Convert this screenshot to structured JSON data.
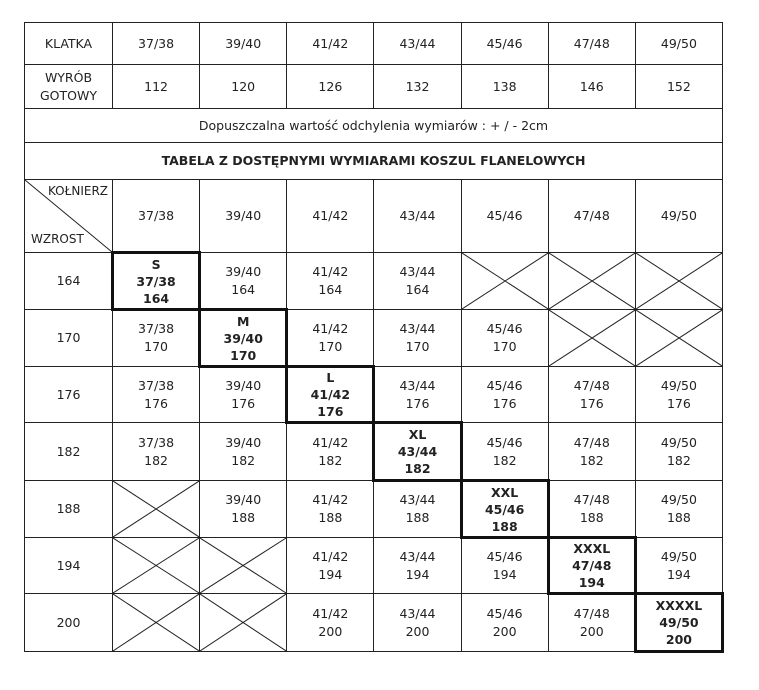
{
  "top_rows": {
    "klatka_label": "KLATKA",
    "klatka_values": [
      "37/38",
      "39/40",
      "41/42",
      "43/44",
      "45/46",
      "47/48",
      "49/50"
    ],
    "wyrob_label_1": "WYRÓB",
    "wyrob_label_2": "GOTOWY",
    "wyrob_values": [
      "112",
      "120",
      "126",
      "132",
      "138",
      "146",
      "152"
    ],
    "tolerance_note": "Dopuszczalna wartość odchylenia wymiarów : + / - 2cm",
    "table_title": "TABELA Z DOSTĘPNYMI WYMIARAMI KOSZUL FLANELOWYCH"
  },
  "size_table": {
    "corner_top": "KOŁNIERZ",
    "corner_bottom": "WZROST",
    "collars": [
      "37/38",
      "39/40",
      "41/42",
      "43/44",
      "45/46",
      "47/48",
      "49/50"
    ],
    "rows": [
      {
        "height": "164",
        "cells": [
          {
            "size": "S",
            "collar": "37/38",
            "height": "164"
          },
          {
            "collar": "39/40",
            "height": "164"
          },
          {
            "collar": "41/42",
            "height": "164"
          },
          {
            "collar": "43/44",
            "height": "164"
          },
          null,
          null,
          null
        ]
      },
      {
        "height": "170",
        "cells": [
          {
            "collar": "37/38",
            "height": "170"
          },
          {
            "size": "M",
            "collar": "39/40",
            "height": "170"
          },
          {
            "collar": "41/42",
            "height": "170"
          },
          {
            "collar": "43/44",
            "height": "170"
          },
          {
            "collar": "45/46",
            "height": "170"
          },
          null,
          null
        ]
      },
      {
        "height": "176",
        "cells": [
          {
            "collar": "37/38",
            "height": "176"
          },
          {
            "collar": "39/40",
            "height": "176"
          },
          {
            "size": "L",
            "collar": "41/42",
            "height": "176"
          },
          {
            "collar": "43/44",
            "height": "176"
          },
          {
            "collar": "45/46",
            "height": "176"
          },
          {
            "collar": "47/48",
            "height": "176"
          },
          {
            "collar": "49/50",
            "height": "176"
          }
        ]
      },
      {
        "height": "182",
        "cells": [
          {
            "collar": "37/38",
            "height": "182"
          },
          {
            "collar": "39/40",
            "height": "182"
          },
          {
            "collar": "41/42",
            "height": "182"
          },
          {
            "size": "XL",
            "collar": "43/44",
            "height": "182"
          },
          {
            "collar": "45/46",
            "height": "182"
          },
          {
            "collar": "47/48",
            "height": "182"
          },
          {
            "collar": "49/50",
            "height": "182"
          }
        ]
      },
      {
        "height": "188",
        "cells": [
          null,
          {
            "collar": "39/40",
            "height": "188"
          },
          {
            "collar": "41/42",
            "height": "188"
          },
          {
            "collar": "43/44",
            "height": "188"
          },
          {
            "size": "XXL",
            "collar": "45/46",
            "height": "188"
          },
          {
            "collar": "47/48",
            "height": "188"
          },
          {
            "collar": "49/50",
            "height": "188"
          }
        ]
      },
      {
        "height": "194",
        "cells": [
          null,
          null,
          {
            "collar": "41/42",
            "height": "194"
          },
          {
            "collar": "43/44",
            "height": "194"
          },
          {
            "collar": "45/46",
            "height": "194"
          },
          {
            "size": "XXXL",
            "collar": "47/48",
            "height": "194"
          },
          {
            "collar": "49/50",
            "height": "194"
          }
        ]
      },
      {
        "height": "200",
        "cells": [
          null,
          null,
          {
            "collar": "41/42",
            "height": "200"
          },
          {
            "collar": "43/44",
            "height": "200"
          },
          {
            "collar": "45/46",
            "height": "200"
          },
          {
            "collar": "47/48",
            "height": "200"
          },
          {
            "size": "XXXXL",
            "collar": "49/50",
            "height": "200"
          }
        ]
      }
    ]
  }
}
